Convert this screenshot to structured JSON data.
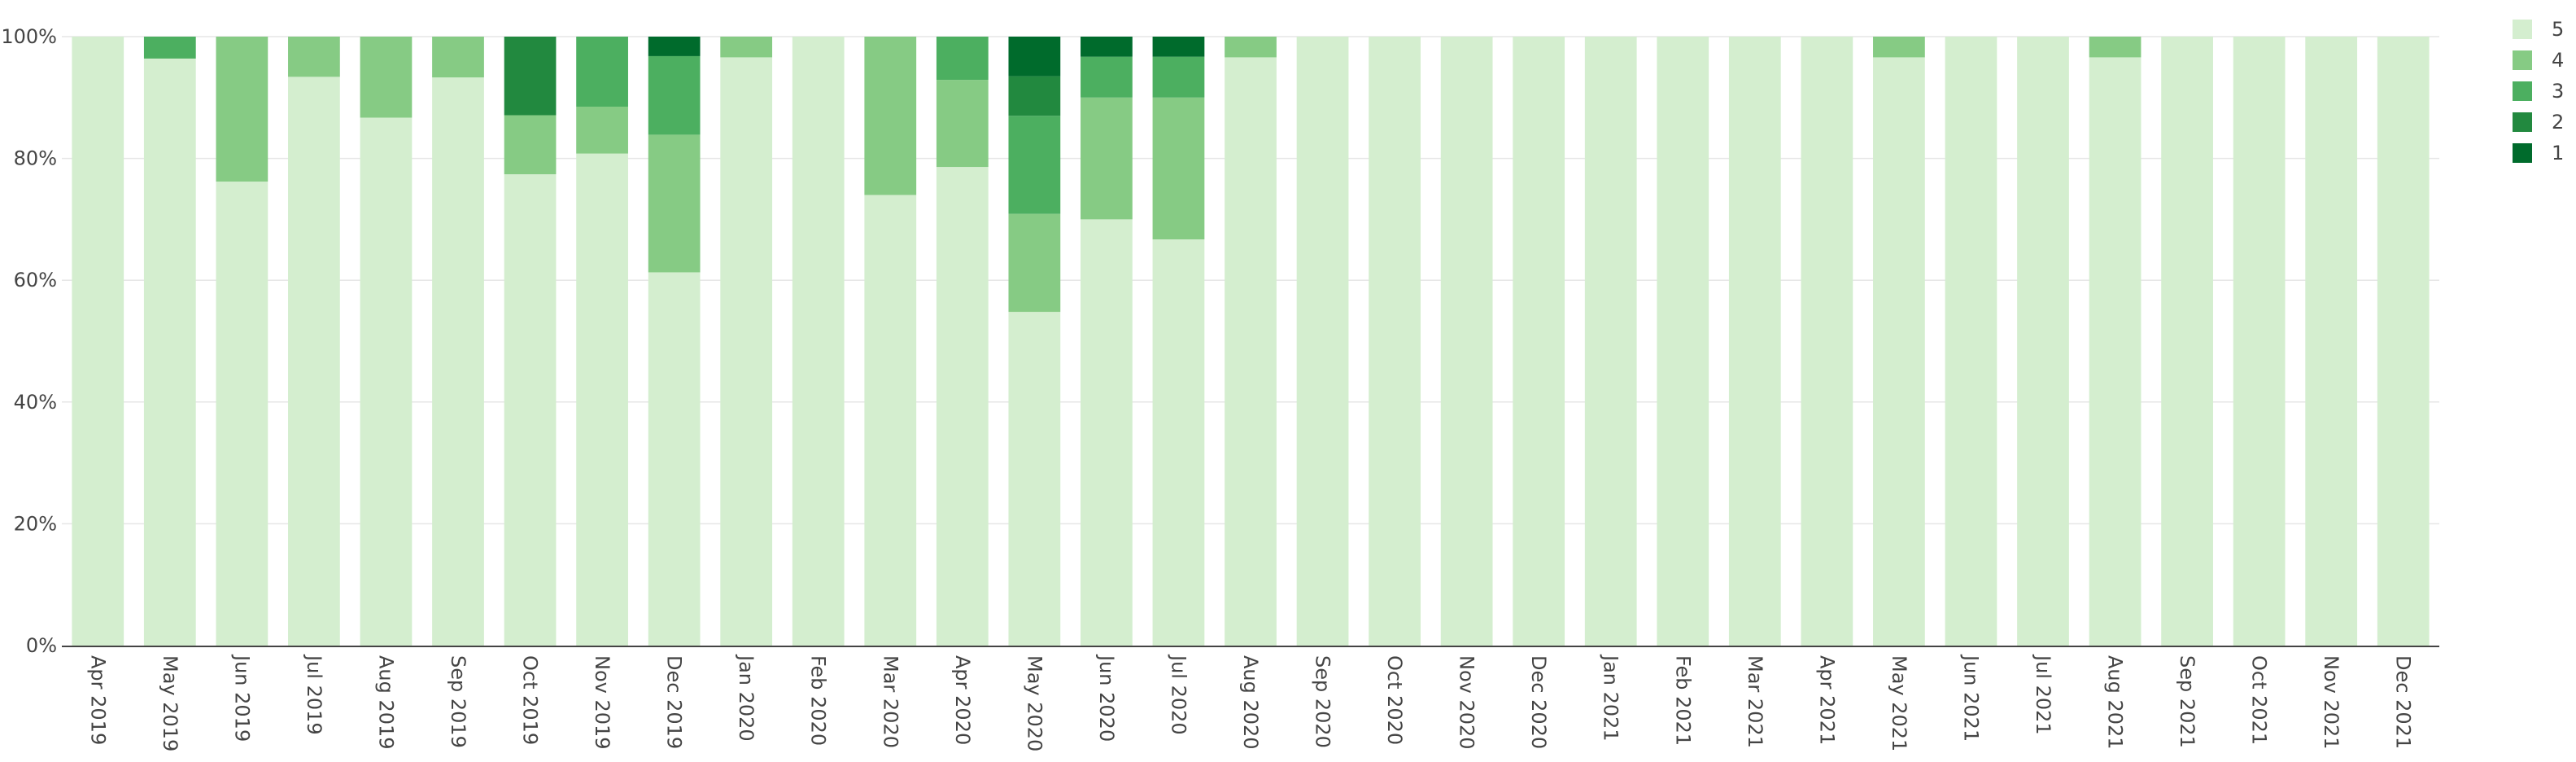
{
  "chart_data": {
    "type": "bar",
    "stacked": true,
    "normalized": true,
    "title": "",
    "xlabel": "",
    "ylabel": "",
    "ylim": [
      0,
      100
    ],
    "y_ticks": [
      "0%",
      "20%",
      "40%",
      "60%",
      "80%",
      "100%"
    ],
    "y_tick_values": [
      0,
      20,
      40,
      60,
      80,
      100
    ],
    "grid": true,
    "legend_position": "top-right",
    "categories": [
      "Apr 2019",
      "May 2019",
      "Jun 2019",
      "Jul 2019",
      "Aug 2019",
      "Sep 2019",
      "Oct 2019",
      "Nov 2019",
      "Dec 2019",
      "Jan 2020",
      "Feb 2020",
      "Mar 2020",
      "Apr 2020",
      "May 2020",
      "Jun 2020",
      "Jul 2020",
      "Aug 2020",
      "Sep 2020",
      "Oct 2020",
      "Nov 2020",
      "Dec 2020",
      "Jan 2021",
      "Feb 2021",
      "Mar 2021",
      "Apr 2021",
      "May 2021",
      "Jun 2021",
      "Jul 2021",
      "Aug 2021",
      "Sep 2021",
      "Oct 2021",
      "Nov 2021",
      "Dec 2021"
    ],
    "series": [
      {
        "name": "5",
        "color": "#d4eecf",
        "values": [
          100,
          96.4,
          76.2,
          93.4,
          86.7,
          93.3,
          77.4,
          80.8,
          61.3,
          96.6,
          100,
          74.0,
          78.6,
          54.8,
          70.0,
          66.7,
          96.6,
          100,
          100,
          100,
          100,
          100,
          100,
          100,
          100,
          96.6,
          100,
          100,
          96.6,
          100,
          100,
          100,
          100
        ]
      },
      {
        "name": "4",
        "color": "#86cb84",
        "values": [
          0,
          0,
          23.8,
          6.6,
          13.3,
          6.7,
          9.7,
          7.7,
          22.6,
          3.4,
          0,
          26.0,
          14.3,
          16.1,
          20.0,
          23.3,
          3.4,
          0,
          0,
          0,
          0,
          0,
          0,
          0,
          0,
          3.4,
          0,
          0,
          3.4,
          0,
          0,
          0,
          0
        ]
      },
      {
        "name": "3",
        "color": "#4caf60",
        "values": [
          0,
          3.6,
          0,
          0,
          0,
          0,
          0,
          11.5,
          12.9,
          0,
          0,
          0,
          7.1,
          16.1,
          6.7,
          6.7,
          0,
          0,
          0,
          0,
          0,
          0,
          0,
          0,
          0,
          0,
          0,
          0,
          0,
          0,
          0,
          0,
          0
        ]
      },
      {
        "name": "2",
        "color": "#22893f",
        "values": [
          0,
          0,
          0,
          0,
          0,
          0,
          12.9,
          0,
          0,
          0,
          0,
          0,
          0,
          6.5,
          0,
          0,
          0,
          0,
          0,
          0,
          0,
          0,
          0,
          0,
          0,
          0,
          0,
          0,
          0,
          0,
          0,
          0,
          0
        ]
      },
      {
        "name": "1",
        "color": "#006b2c",
        "values": [
          0,
          0,
          0,
          0,
          0,
          0,
          0,
          0,
          3.2,
          0,
          0,
          0,
          0,
          6.5,
          3.3,
          3.3,
          0,
          0,
          0,
          0,
          0,
          0,
          0,
          0,
          0,
          0,
          0,
          0,
          0,
          0,
          0,
          0,
          0
        ]
      }
    ],
    "legend": [
      "5",
      "4",
      "3",
      "2",
      "1"
    ]
  },
  "colors": {
    "axis": "#444444",
    "grid": "#e6e6e6"
  }
}
